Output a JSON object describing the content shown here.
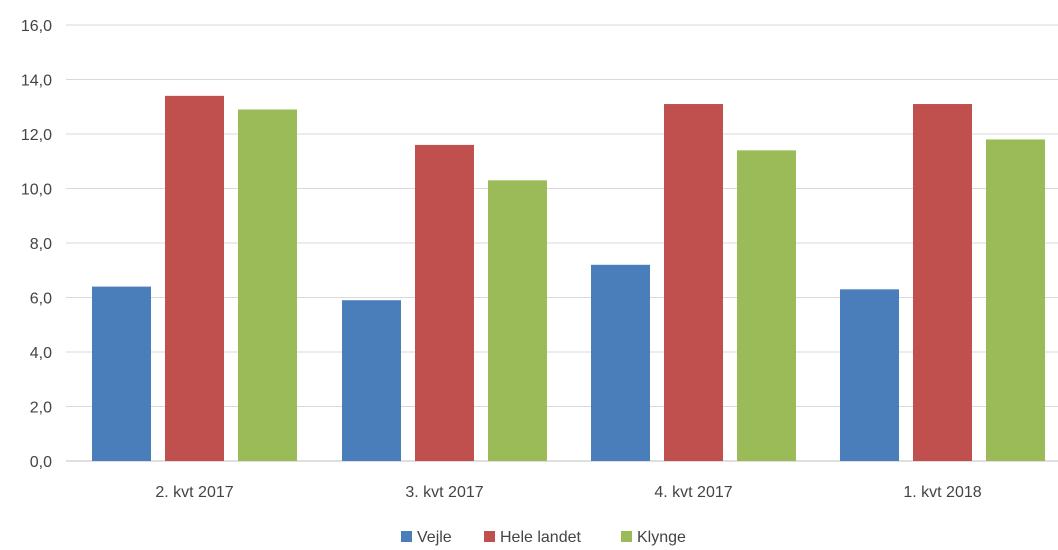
{
  "chart_data": {
    "type": "bar",
    "categories": [
      "2. kvt 2017",
      "3. kvt 2017",
      "4. kvt 2017",
      "1. kvt 2018"
    ],
    "series": [
      {
        "name": "Vejle",
        "color": "#4a7ebb",
        "values": [
          6.4,
          5.9,
          7.2,
          6.3
        ]
      },
      {
        "name": "Hele landet",
        "color": "#c0504d",
        "values": [
          13.4,
          11.6,
          13.1,
          13.1
        ]
      },
      {
        "name": "Klynge",
        "color": "#9bbb59",
        "values": [
          12.9,
          10.3,
          11.4,
          11.8
        ]
      }
    ],
    "ylim": [
      0,
      16
    ],
    "yticks": [
      "0,0",
      "2,0",
      "4,0",
      "6,0",
      "8,0",
      "10,0",
      "12,0",
      "14,0",
      "16,0"
    ],
    "grid": true,
    "legend": "bottom",
    "title": "",
    "xlabel": "",
    "ylabel": ""
  }
}
